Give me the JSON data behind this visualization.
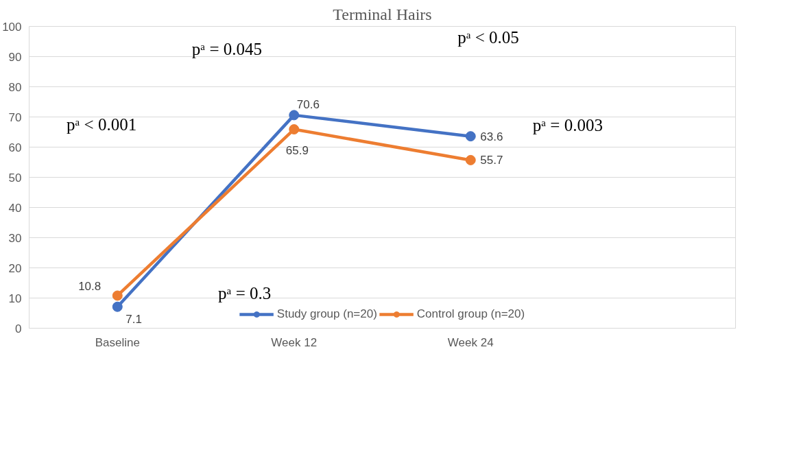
{
  "chart_data": {
    "type": "line",
    "title": "Terminal Hairs",
    "categories": [
      "Baseline",
      "Week 12",
      "Week 24",
      null
    ],
    "series": [
      {
        "name": "Study group (n=20)",
        "color": "#4472c4",
        "values": [
          7.1,
          70.6,
          63.6,
          null
        ]
      },
      {
        "name": "Control group (n=20)",
        "color": "#ed7d31",
        "values": [
          10.8,
          65.9,
          55.7,
          null
        ]
      }
    ],
    "ylim": [
      0,
      100
    ],
    "yticks": [
      0,
      10,
      20,
      30,
      40,
      50,
      60,
      70,
      80,
      90,
      100
    ],
    "grid": "y",
    "legend": "bottom",
    "marker": "circle",
    "line_style": "solid",
    "data_labels": true,
    "annotations": [
      "pᵃ = 0.045",
      "pᵃ < 0.05",
      "pᵃ < 0.001",
      "pᵃ = 0.003",
      "pᵃ = 0.3"
    ]
  }
}
